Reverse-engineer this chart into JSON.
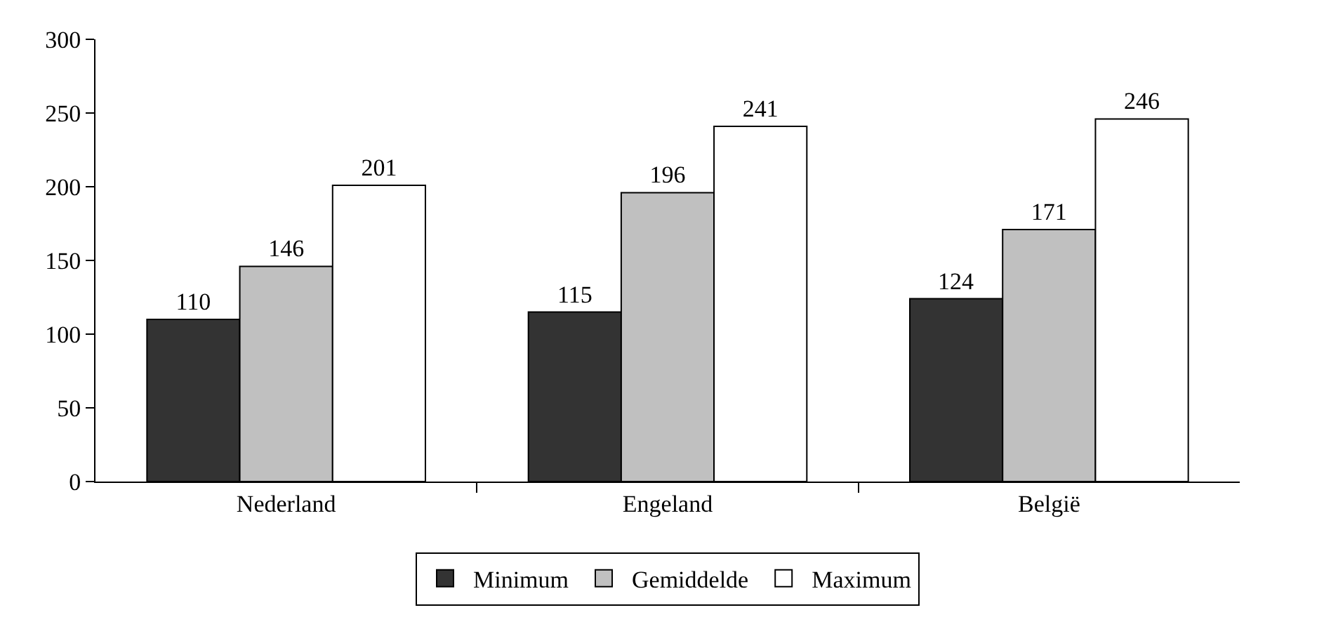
{
  "chart_data": {
    "type": "bar",
    "categories": [
      "Nederland",
      "Engeland",
      "België"
    ],
    "series": [
      {
        "name": "Minimum",
        "color": "#333333",
        "values": [
          110,
          115,
          124
        ]
      },
      {
        "name": "Gemiddelde",
        "color": "#c0c0c0",
        "values": [
          146,
          196,
          171
        ]
      },
      {
        "name": "Maximum",
        "color": "#ffffff",
        "values": [
          201,
          241,
          246
        ]
      }
    ],
    "ylim": [
      0,
      300
    ],
    "yticks": [
      0,
      50,
      100,
      150,
      200,
      250,
      300
    ],
    "grid": false,
    "legend": "bottom",
    "data_labels": true
  }
}
